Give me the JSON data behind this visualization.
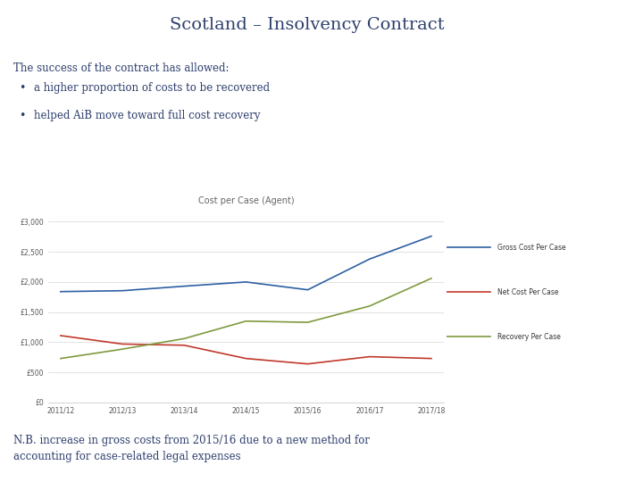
{
  "title": "Scotland – Insolvency Contract",
  "intro_text": "The success of the contract has allowed:",
  "bullets": [
    "a higher proportion of costs to be recovered",
    "helped AiB move toward full cost recovery"
  ],
  "chart_title": "Cost per Case (Agent)",
  "footer": "N.B. increase in gross costs from 2015/16 due to a new method for\naccounting for case-related legal expenses",
  "x_labels": [
    "2011/12",
    "2012/13",
    "2013/14",
    "2014/15",
    "2015/16",
    "2016/17",
    "2017/18"
  ],
  "gross_cost": [
    1840,
    1855,
    1930,
    2000,
    1870,
    2380,
    2760
  ],
  "net_cost": [
    1110,
    970,
    950,
    730,
    640,
    760,
    730
  ],
  "recovery": [
    730,
    885,
    1060,
    1350,
    1330,
    1600,
    2060
  ],
  "y_ticks": [
    0,
    500,
    1000,
    1500,
    2000,
    2500,
    3000
  ],
  "y_tick_labels": [
    "£0",
    "£500",
    "£1,000",
    "£1,500",
    "£2,000",
    "£2,500",
    "£3,000"
  ],
  "gross_color": "#2e5fa3",
  "net_color": "#c0392b",
  "recovery_color": "#7f9a3e",
  "legend_labels": [
    "Gross Cost Per Case",
    "Net Cost Per Case",
    "Recovery Per Case"
  ],
  "bg_color": "#ffffff",
  "title_color": "#2e3f6e",
  "text_color": "#2e3f6e",
  "red_strip_color": "#cc2222",
  "navy_color": "#1e2462"
}
